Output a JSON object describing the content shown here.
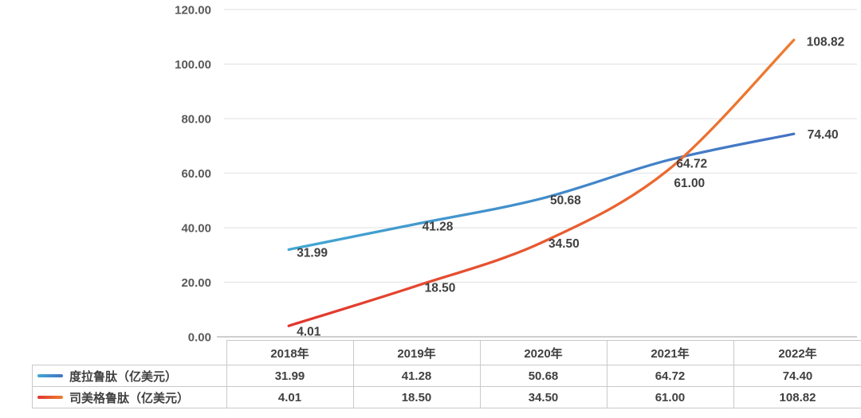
{
  "chart_data": {
    "type": "line",
    "title": "",
    "xlabel": "",
    "ylabel": "",
    "categories": [
      "2018年",
      "2019年",
      "2020年",
      "2021年",
      "2022年"
    ],
    "series": [
      {
        "name": "度拉鲁肽（亿美元）",
        "values": [
          31.99,
          41.28,
          50.68,
          64.72,
          74.4
        ],
        "color_start": "#41A7D2",
        "color_end": "#4472C4"
      },
      {
        "name": "司美格鲁肽（亿美元）",
        "values": [
          4.01,
          18.5,
          34.5,
          61.0,
          108.82
        ],
        "color_start": "#E2352F",
        "color_end": "#ED7D31"
      }
    ],
    "ylim": [
      0,
      120
    ],
    "ytick_step": 20,
    "ytick_labels": [
      "0.00",
      "20.00",
      "40.00",
      "60.00",
      "80.00",
      "100.00",
      "120.00"
    ],
    "value_format_decimals": 2,
    "grid": true,
    "smooth_lines": true,
    "legend_position": "table-left",
    "data_labels": {
      "series_0": [
        "31.99",
        "41.28",
        "50.68",
        "64.72",
        "74.40"
      ],
      "series_1": [
        "4.01",
        "18.50",
        "34.50",
        "61.00",
        "108.82"
      ]
    }
  },
  "colors": {
    "data_label_text": "#404040",
    "axis_tick_text": "#595959",
    "table_text": "#404040",
    "gridline": "#E5E5E5",
    "axis_line": "#BFBFBF",
    "table_border": "#C9C9C9",
    "background": "#FFFFFF"
  }
}
